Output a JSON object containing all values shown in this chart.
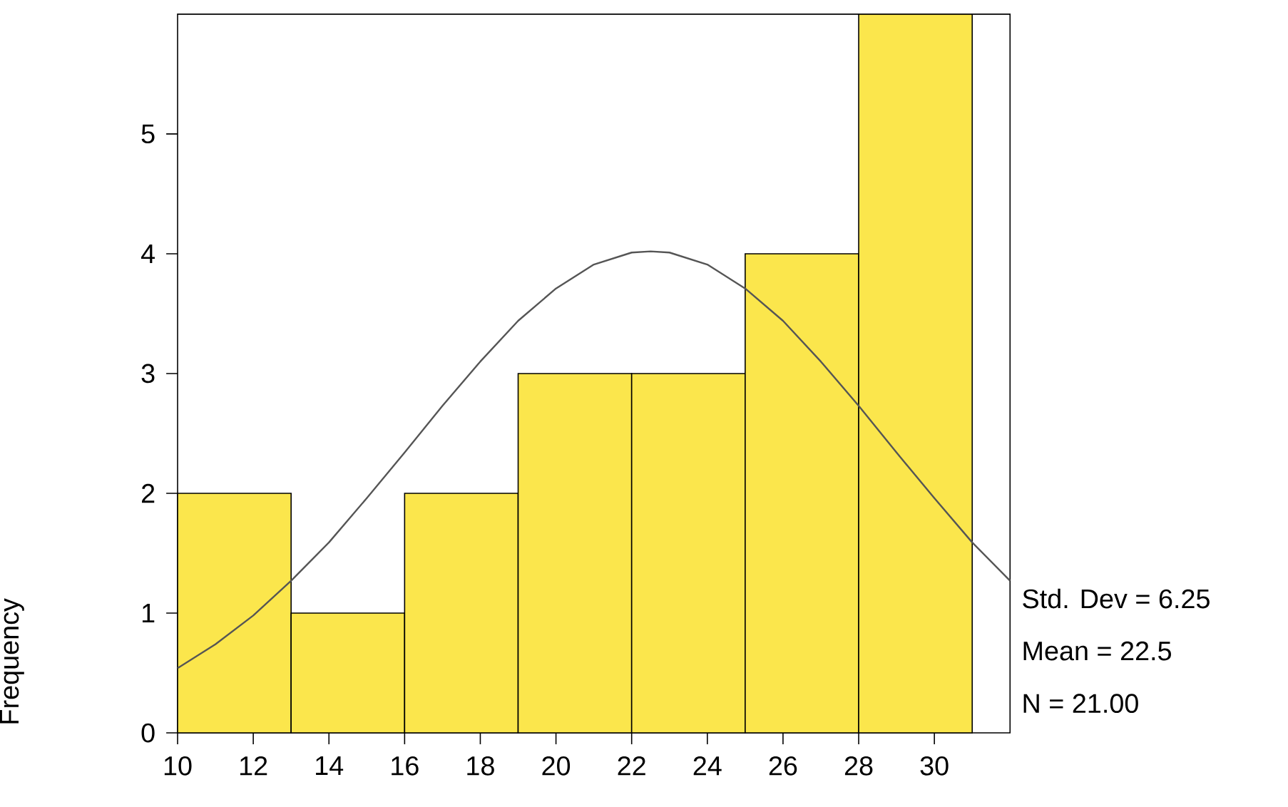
{
  "chart_data": {
    "type": "histogram",
    "ylabel": "Frequency",
    "series": [
      {
        "bins": [
          10,
          13,
          16,
          19,
          22,
          25,
          28,
          31
        ],
        "values": [
          2,
          1,
          2,
          3,
          3,
          4,
          6
        ],
        "color": "#fbe64c"
      },
      {
        "type": "line",
        "x": [
          10,
          11,
          12,
          13,
          14,
          15,
          16,
          17,
          18,
          19,
          20,
          21,
          22,
          22.5,
          23,
          24,
          25,
          26,
          27,
          28,
          29,
          30,
          31,
          32
        ],
        "values": [
          0.54,
          0.74,
          0.98,
          1.27,
          1.59,
          1.96,
          2.34,
          2.73,
          3.1,
          3.44,
          3.71,
          3.91,
          4.01,
          4.02,
          4.01,
          3.91,
          3.71,
          3.44,
          3.1,
          2.73,
          2.34,
          1.96,
          1.59,
          1.27
        ],
        "color": "#555555"
      }
    ],
    "xlim": [
      10,
      32
    ],
    "ylim": [
      0,
      6
    ],
    "xticks": [
      10,
      12,
      14,
      16,
      18,
      20,
      22,
      24,
      26,
      28,
      30
    ],
    "yticks": [
      0,
      1,
      2,
      3,
      4,
      5
    ],
    "grid": false,
    "annotations": [
      "Std. Dev = 6.25",
      "Mean = 22.5",
      "N = 21.00"
    ]
  }
}
